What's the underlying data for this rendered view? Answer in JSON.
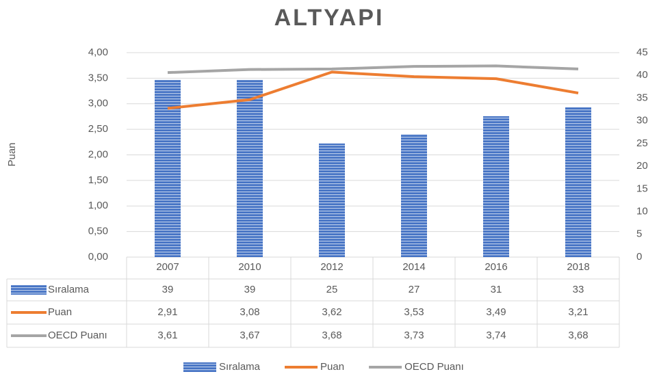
{
  "chart_data": {
    "type": "bar",
    "title": "ALTYAPI",
    "y_label": "Puan",
    "categories": [
      "2007",
      "2010",
      "2012",
      "2014",
      "2016",
      "2018"
    ],
    "series": [
      {
        "name": "Sıralama",
        "type": "bar",
        "axis": "y2",
        "color": "#4472c4",
        "values": [
          39,
          39,
          25,
          27,
          31,
          33
        ]
      },
      {
        "name": "Puan",
        "type": "line",
        "color": "#ed7d31",
        "values": [
          2.91,
          3.08,
          3.62,
          3.53,
          3.49,
          3.21
        ],
        "value_labels": [
          "2,91",
          "3,08",
          "3,62",
          "3,53",
          "3,49",
          "3,21"
        ]
      },
      {
        "name": "OECD Puanı",
        "type": "line",
        "color": "#a5a5a5",
        "values": [
          3.61,
          3.67,
          3.68,
          3.73,
          3.74,
          3.68
        ],
        "value_labels": [
          "3,61",
          "3,67",
          "3,68",
          "3,73",
          "3,74",
          "3,68"
        ]
      }
    ],
    "ylim": [
      0,
      4
    ],
    "yticks": [
      {
        "value": 0,
        "label": "0,00"
      },
      {
        "value": 0.5,
        "label": "0,50"
      },
      {
        "value": 1,
        "label": "1,00"
      },
      {
        "value": 1.5,
        "label": "1,50"
      },
      {
        "value": 2,
        "label": "2,00"
      },
      {
        "value": 2.5,
        "label": "2,50"
      },
      {
        "value": 3,
        "label": "3,00"
      },
      {
        "value": 3.5,
        "label": "3,50"
      },
      {
        "value": 4,
        "label": "4,00"
      }
    ],
    "y2lim": [
      0,
      45
    ],
    "y2ticks": [
      0,
      5,
      10,
      15,
      20,
      25,
      30,
      35,
      40,
      45
    ],
    "grid": true,
    "legend": "bottom"
  }
}
